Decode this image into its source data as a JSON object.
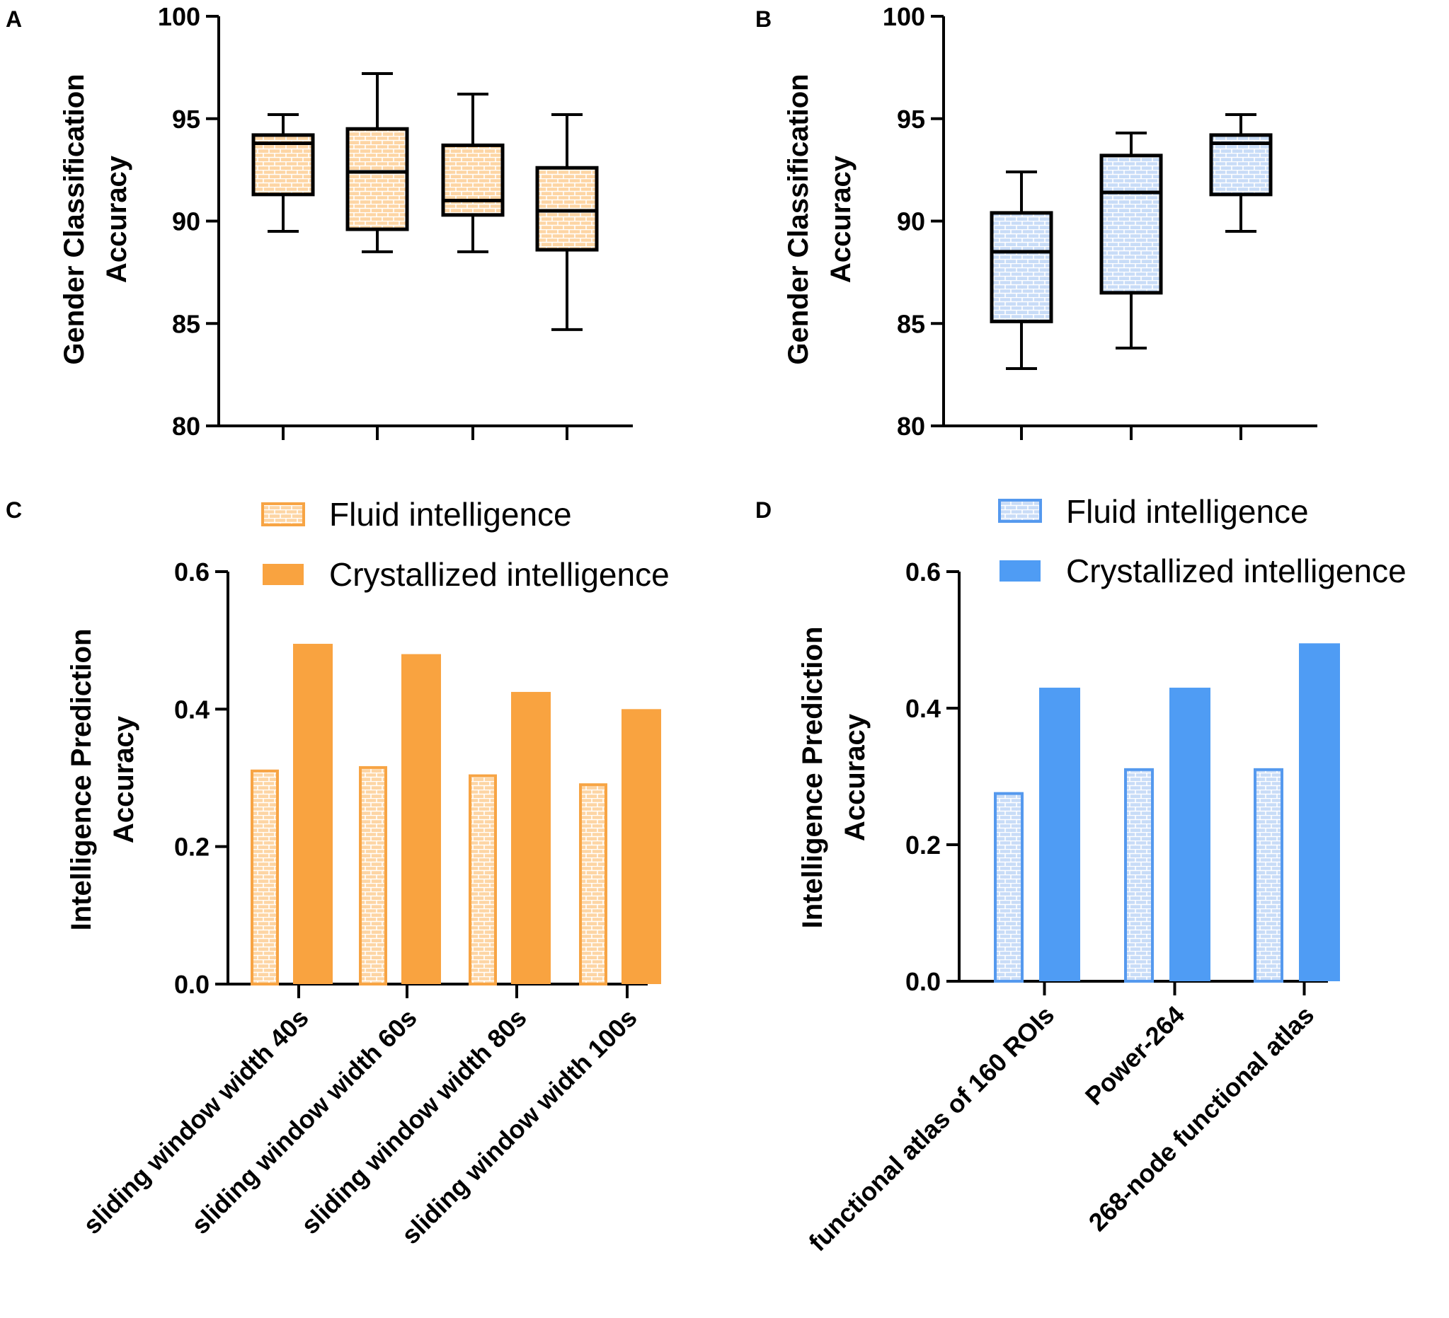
{
  "colors": {
    "orange_fill": "#fdd5a4",
    "orange_stroke": "#f7a444",
    "orange_solid": "#f9a340",
    "blue_fill": "#c8dcf7",
    "blue_stroke": "#5599ee",
    "blue_solid": "#4f9cf4",
    "axis": "#000000",
    "background": "#ffffff"
  },
  "chart_data": [
    {
      "panel": "A",
      "type": "box",
      "ylabel": [
        "Gender Classification",
        "Accuracy"
      ],
      "ylim": [
        80,
        100
      ],
      "yticks": [
        80,
        85,
        90,
        95,
        100
      ],
      "color": "orange",
      "categories": [],
      "boxes": [
        {
          "min": 89.5,
          "q1": 91.3,
          "median": 93.8,
          "q3": 94.2,
          "max": 95.2
        },
        {
          "min": 88.5,
          "q1": 89.6,
          "median": 92.4,
          "q3": 94.5,
          "max": 97.2
        },
        {
          "min": 88.5,
          "q1": 90.3,
          "median": 91.0,
          "q3": 93.7,
          "max": 96.2
        },
        {
          "min": 84.7,
          "q1": 88.6,
          "median": 90.5,
          "q3": 92.6,
          "max": 95.2
        }
      ]
    },
    {
      "panel": "B",
      "type": "box",
      "ylabel": [
        "Gender Classification",
        "Accuracy"
      ],
      "ylim": [
        80,
        100
      ],
      "yticks": [
        80,
        85,
        90,
        95,
        100
      ],
      "color": "blue",
      "categories": [],
      "boxes": [
        {
          "min": 82.8,
          "q1": 85.1,
          "median": 88.5,
          "q3": 90.4,
          "max": 92.4
        },
        {
          "min": 83.8,
          "q1": 86.5,
          "median": 91.4,
          "q3": 93.2,
          "max": 94.3
        },
        {
          "min": 89.5,
          "q1": 91.3,
          "median": 93.8,
          "q3": 94.2,
          "max": 95.2
        }
      ]
    },
    {
      "panel": "C",
      "type": "bar",
      "ylabel": [
        "Intelligence Prediction",
        "Accuracy"
      ],
      "ylim": [
        0,
        0.6
      ],
      "yticks": [
        "0.0",
        "0.2",
        "0.4",
        "0.6"
      ],
      "color": "orange",
      "categories": [
        "sliding window width 40s",
        "sliding window width 60s",
        "sliding window width 80s",
        "sliding window width 100s"
      ],
      "series": [
        {
          "name": "Fluid intelligence",
          "values": [
            0.31,
            0.315,
            0.303,
            0.29
          ]
        },
        {
          "name": "Crystallized intelligence",
          "values": [
            0.495,
            0.48,
            0.425,
            0.4
          ]
        }
      ],
      "legend": [
        "Fluid intelligence",
        "Crystallized intelligence"
      ]
    },
    {
      "panel": "D",
      "type": "bar",
      "ylabel": [
        "Intelligence Prediction",
        "Accuracy"
      ],
      "ylim": [
        0,
        0.6
      ],
      "yticks": [
        "0.0",
        "0.2",
        "0.4",
        "0.6"
      ],
      "color": "blue",
      "categories": [
        "functional atlas of 160 ROIs",
        "Power-264",
        "268-node functional atlas"
      ],
      "series": [
        {
          "name": "Fluid intelligence",
          "values": [
            0.275,
            0.31,
            0.31
          ]
        },
        {
          "name": "Crystallized intelligence",
          "values": [
            0.43,
            0.43,
            0.495
          ]
        }
      ],
      "legend": [
        "Fluid intelligence",
        "Crystallized intelligence"
      ]
    }
  ]
}
